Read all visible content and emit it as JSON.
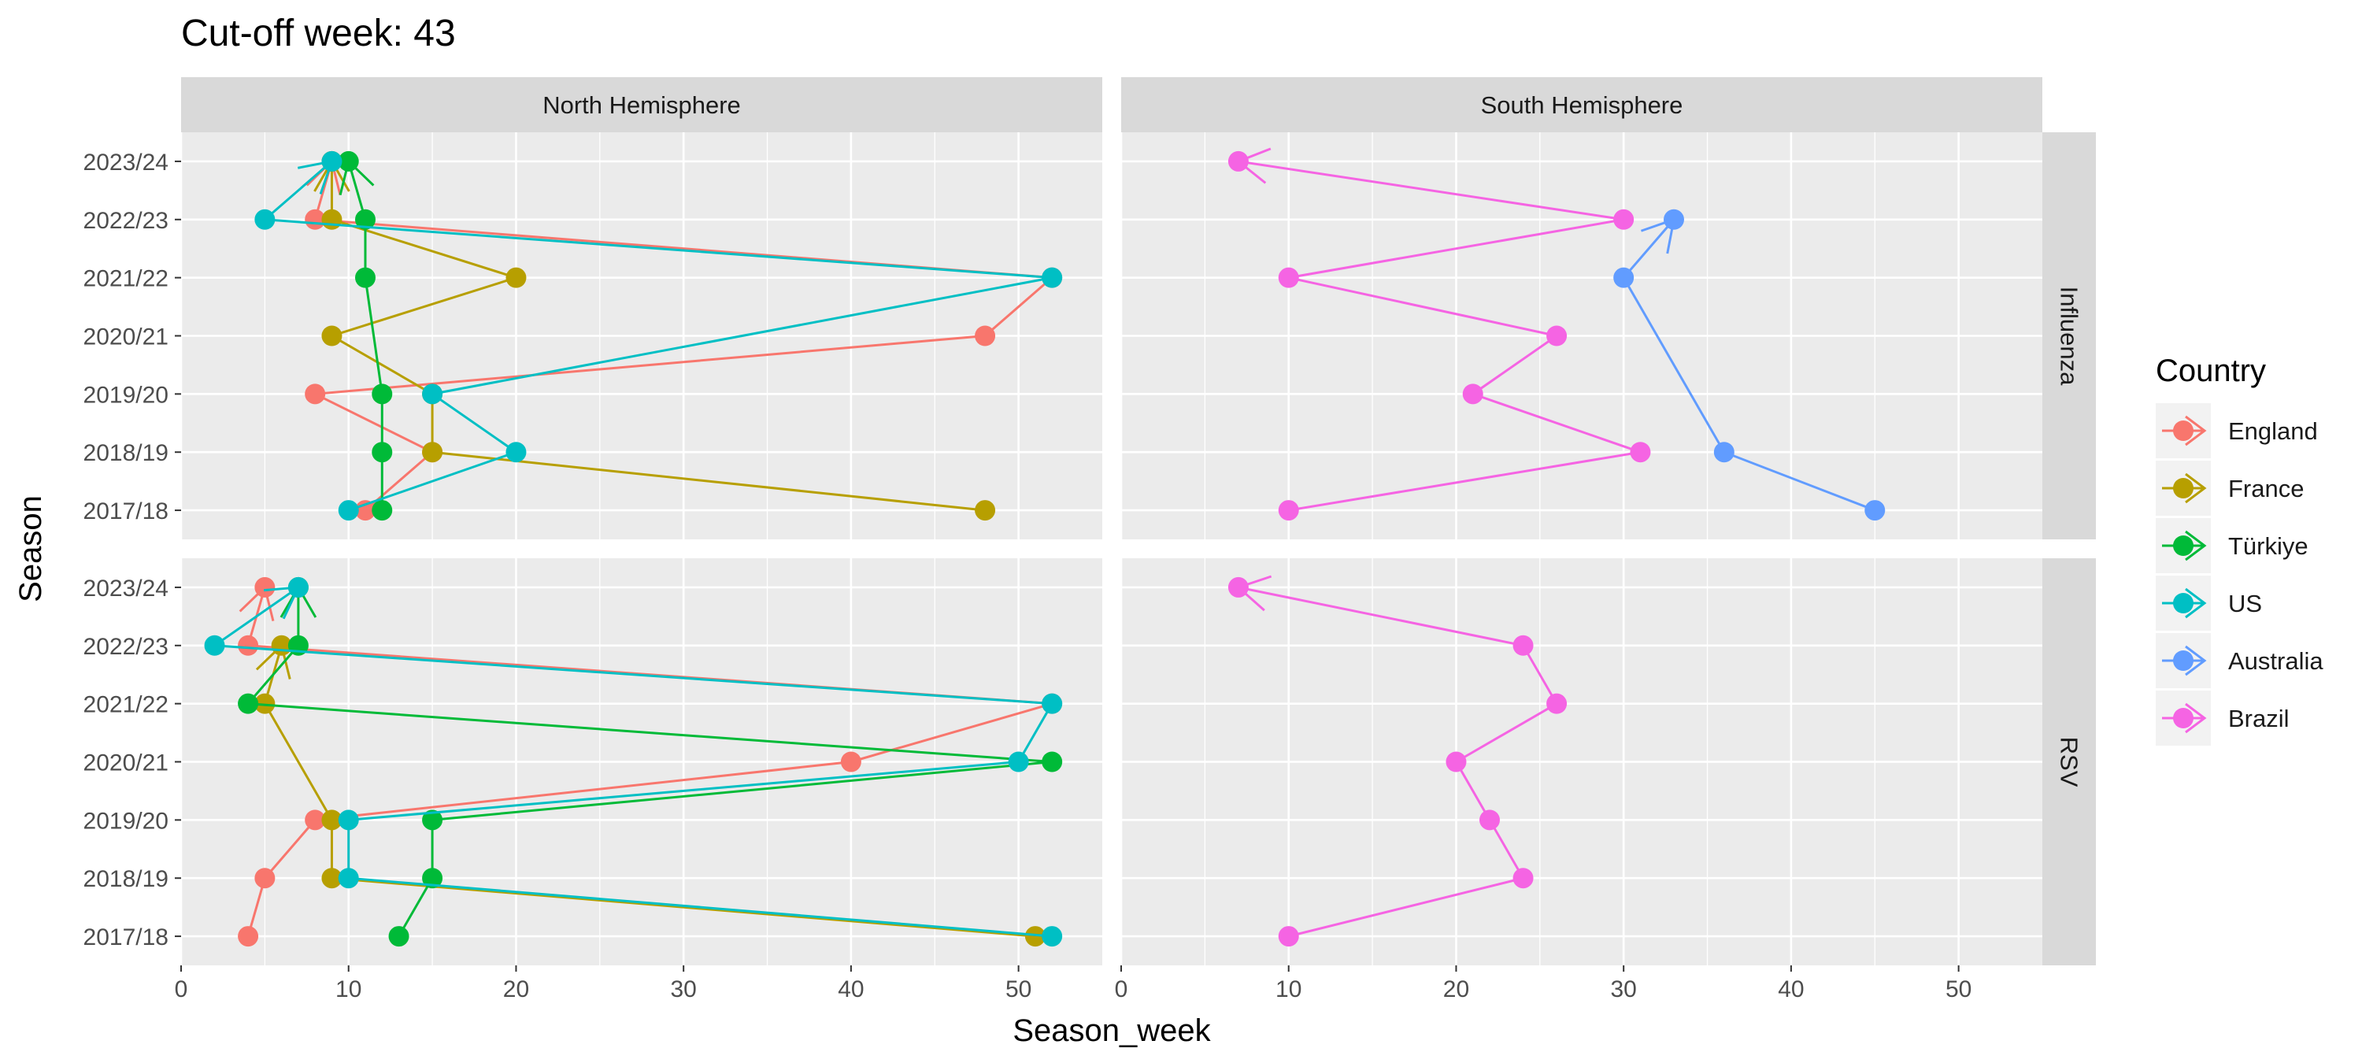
{
  "chart_data": {
    "type": "line",
    "title": "Cut-off week: 43",
    "xlabel": "Season_week",
    "ylabel": "Season",
    "xlim": [
      0,
      55
    ],
    "x_ticks": [
      0,
      10,
      20,
      30,
      40,
      50
    ],
    "seasons": [
      "2017/18",
      "2018/19",
      "2019/20",
      "2020/21",
      "2021/22",
      "2022/23",
      "2023/24"
    ],
    "columns": [
      "North Hemisphere",
      "South Hemisphere"
    ],
    "rows": [
      "Influenza",
      "RSV"
    ],
    "grid": true,
    "legend": {
      "title": "Country",
      "position": "right",
      "entries": [
        {
          "name": "England",
          "color": "#F8766D"
        },
        {
          "name": "France",
          "color": "#B79F00"
        },
        {
          "name": "Türkiye",
          "color": "#00BA38"
        },
        {
          "name": "US",
          "color": "#00BFC4"
        },
        {
          "name": "Australia",
          "color": "#619CFF"
        },
        {
          "name": "Brazil",
          "color": "#F564E3"
        }
      ]
    },
    "panels": [
      {
        "column": "North Hemisphere",
        "row": "Influenza",
        "series": [
          {
            "name": "England",
            "points": [
              {
                "x": 11,
                "y": "2017/18"
              },
              {
                "x": 15,
                "y": "2018/19"
              },
              {
                "x": 8,
                "y": "2019/20"
              },
              {
                "x": 48,
                "y": "2020/21"
              },
              {
                "x": 52,
                "y": "2021/22"
              },
              {
                "x": 8,
                "y": "2022/23"
              },
              {
                "x": 9,
                "y": "2023/24"
              }
            ]
          },
          {
            "name": "France",
            "points": [
              {
                "x": 48,
                "y": "2017/18"
              },
              {
                "x": 15,
                "y": "2018/19"
              },
              {
                "x": 15,
                "y": "2019/20"
              },
              {
                "x": 9,
                "y": "2020/21"
              },
              {
                "x": 20,
                "y": "2021/22"
              },
              {
                "x": 9,
                "y": "2022/23"
              },
              {
                "x": 9,
                "y": "2023/24"
              }
            ]
          },
          {
            "name": "Türkiye",
            "points": [
              {
                "x": 12,
                "y": "2017/18"
              },
              {
                "x": 12,
                "y": "2018/19"
              },
              {
                "x": 12,
                "y": "2019/20"
              },
              {
                "x": 11,
                "y": "2021/22"
              },
              {
                "x": 11,
                "y": "2022/23"
              },
              {
                "x": 10,
                "y": "2023/24"
              }
            ]
          },
          {
            "name": "US",
            "points": [
              {
                "x": 10,
                "y": "2017/18"
              },
              {
                "x": 20,
                "y": "2018/19"
              },
              {
                "x": 15,
                "y": "2019/20"
              },
              {
                "x": 52,
                "y": "2021/22"
              },
              {
                "x": 5,
                "y": "2022/23"
              },
              {
                "x": 9,
                "y": "2023/24"
              }
            ]
          }
        ]
      },
      {
        "column": "South Hemisphere",
        "row": "Influenza",
        "series": [
          {
            "name": "Australia",
            "points": [
              {
                "x": 45,
                "y": "2017/18"
              },
              {
                "x": 36,
                "y": "2018/19"
              },
              {
                "x": 30,
                "y": "2021/22"
              },
              {
                "x": 33,
                "y": "2022/23"
              }
            ]
          },
          {
            "name": "Brazil",
            "points": [
              {
                "x": 10,
                "y": "2017/18"
              },
              {
                "x": 31,
                "y": "2018/19"
              },
              {
                "x": 21,
                "y": "2019/20"
              },
              {
                "x": 26,
                "y": "2020/21"
              },
              {
                "x": 10,
                "y": "2021/22"
              },
              {
                "x": 30,
                "y": "2022/23"
              },
              {
                "x": 7,
                "y": "2023/24"
              }
            ]
          }
        ]
      },
      {
        "column": "North Hemisphere",
        "row": "RSV",
        "series": [
          {
            "name": "England",
            "points": [
              {
                "x": 4,
                "y": "2017/18"
              },
              {
                "x": 5,
                "y": "2018/19"
              },
              {
                "x": 8,
                "y": "2019/20"
              },
              {
                "x": 40,
                "y": "2020/21"
              },
              {
                "x": 52,
                "y": "2021/22"
              },
              {
                "x": 4,
                "y": "2022/23"
              },
              {
                "x": 5,
                "y": "2023/24"
              }
            ]
          },
          {
            "name": "France",
            "points": [
              {
                "x": 51,
                "y": "2017/18"
              },
              {
                "x": 9,
                "y": "2018/19"
              },
              {
                "x": 9,
                "y": "2019/20"
              },
              {
                "x": 5,
                "y": "2021/22"
              },
              {
                "x": 6,
                "y": "2022/23"
              }
            ]
          },
          {
            "name": "Türkiye",
            "points": [
              {
                "x": 13,
                "y": "2017/18"
              },
              {
                "x": 15,
                "y": "2018/19"
              },
              {
                "x": 15,
                "y": "2019/20"
              },
              {
                "x": 52,
                "y": "2020/21"
              },
              {
                "x": 4,
                "y": "2021/22"
              },
              {
                "x": 7,
                "y": "2022/23"
              },
              {
                "x": 7,
                "y": "2023/24"
              }
            ]
          },
          {
            "name": "US",
            "points": [
              {
                "x": 52,
                "y": "2017/18"
              },
              {
                "x": 10,
                "y": "2018/19"
              },
              {
                "x": 10,
                "y": "2019/20"
              },
              {
                "x": 50,
                "y": "2020/21"
              },
              {
                "x": 52,
                "y": "2021/22"
              },
              {
                "x": 2,
                "y": "2022/23"
              },
              {
                "x": 7,
                "y": "2023/24"
              }
            ]
          }
        ]
      },
      {
        "column": "South Hemisphere",
        "row": "RSV",
        "series": [
          {
            "name": "Brazil",
            "points": [
              {
                "x": 10,
                "y": "2017/18"
              },
              {
                "x": 24,
                "y": "2018/19"
              },
              {
                "x": 22,
                "y": "2019/20"
              },
              {
                "x": 20,
                "y": "2020/21"
              },
              {
                "x": 26,
                "y": "2021/22"
              },
              {
                "x": 24,
                "y": "2022/23"
              },
              {
                "x": 7,
                "y": "2023/24"
              }
            ]
          }
        ]
      }
    ]
  }
}
